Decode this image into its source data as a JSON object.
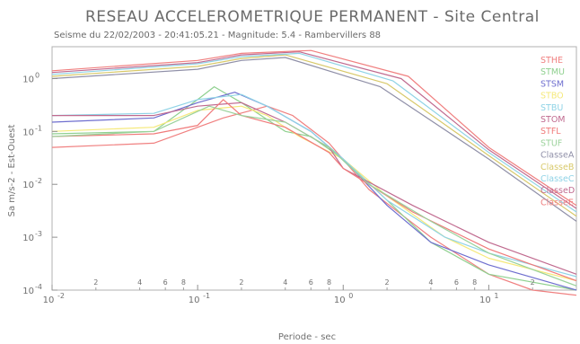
{
  "chart_data": {
    "type": "line",
    "title": "RESEAU ACCELEROMETRIQUE PERMANENT  -  Site Central",
    "subtitle": "Seisme du 22/02/2003 - 20:41:05.21 - Magnitude: 5.4 - Rambervillers 88",
    "xlabel": "Periode - sec",
    "ylabel": "Sa m/s-2 - Est-Ouest",
    "x_scale": "log",
    "y_scale": "log",
    "xlim": [
      0.01,
      40
    ],
    "ylim": [
      0.0001,
      4
    ],
    "grid": false,
    "legend_position": "right",
    "x_ticks_major": [
      {
        "v": 0.01,
        "base": "10",
        "exp": "-2"
      },
      {
        "v": 0.1,
        "base": "10",
        "exp": "-1"
      },
      {
        "v": 1,
        "base": "10",
        "exp": "0"
      },
      {
        "v": 10,
        "base": "10",
        "exp": "1"
      }
    ],
    "x_ticks_minor": [
      {
        "v": 0.02,
        "label": "2"
      },
      {
        "v": 0.04,
        "label": "4"
      },
      {
        "v": 0.06,
        "label": "6"
      },
      {
        "v": 0.08,
        "label": "8"
      },
      {
        "v": 0.2,
        "label": "2"
      },
      {
        "v": 0.4,
        "label": "4"
      },
      {
        "v": 0.6,
        "label": "6"
      },
      {
        "v": 0.8,
        "label": "8"
      },
      {
        "v": 2,
        "label": "2"
      },
      {
        "v": 4,
        "label": "4"
      },
      {
        "v": 6,
        "label": "6"
      },
      {
        "v": 8,
        "label": "8"
      },
      {
        "v": 20,
        "label": "2"
      }
    ],
    "y_ticks": [
      {
        "v": 1,
        "base": "10",
        "exp": "0"
      },
      {
        "v": 0.1,
        "base": "10",
        "exp": "-1"
      },
      {
        "v": 0.01,
        "base": "10",
        "exp": "-2"
      },
      {
        "v": 0.001,
        "base": "10",
        "exp": "-3"
      },
      {
        "v": 0.0001,
        "base": "10",
        "exp": "-4"
      }
    ],
    "series": [
      {
        "name": "STHE",
        "color": "#f08080",
        "x": [
          0.01,
          0.05,
          0.15,
          0.3,
          0.45,
          0.8,
          1.5,
          4,
          10,
          20,
          40
        ],
        "y": [
          0.05,
          0.06,
          0.18,
          0.3,
          0.2,
          0.06,
          0.008,
          0.001,
          0.0002,
          0.0001,
          8e-05
        ]
      },
      {
        "name": "STMU",
        "color": "#8fd08f",
        "x": [
          0.01,
          0.05,
          0.1,
          0.13,
          0.2,
          0.4,
          0.6,
          1,
          2,
          4,
          10,
          40
        ],
        "y": [
          0.09,
          0.1,
          0.4,
          0.7,
          0.35,
          0.1,
          0.08,
          0.03,
          0.005,
          0.0008,
          0.0002,
          0.0001
        ]
      },
      {
        "name": "STSM",
        "color": "#6f6fcf",
        "x": [
          0.01,
          0.05,
          0.1,
          0.18,
          0.3,
          0.6,
          1,
          2,
          4,
          10,
          40
        ],
        "y": [
          0.15,
          0.18,
          0.35,
          0.55,
          0.3,
          0.1,
          0.03,
          0.004,
          0.0008,
          0.0003,
          0.0001
        ]
      },
      {
        "name": "STBO",
        "color": "#f5e97a",
        "x": [
          0.01,
          0.05,
          0.1,
          0.2,
          0.3,
          0.5,
          1,
          2,
          5,
          10,
          40
        ],
        "y": [
          0.1,
          0.12,
          0.25,
          0.3,
          0.2,
          0.08,
          0.03,
          0.006,
          0.001,
          0.0004,
          0.00015
        ]
      },
      {
        "name": "STBU",
        "color": "#8fd3e6",
        "x": [
          0.01,
          0.05,
          0.1,
          0.2,
          0.3,
          0.6,
          1,
          2,
          5,
          10,
          40
        ],
        "y": [
          0.2,
          0.22,
          0.4,
          0.5,
          0.3,
          0.1,
          0.03,
          0.005,
          0.001,
          0.0005,
          0.00018
        ]
      },
      {
        "name": "STOM",
        "color": "#c06a8f",
        "x": [
          0.01,
          0.05,
          0.1,
          0.2,
          0.4,
          0.8,
          1,
          3,
          10,
          40
        ],
        "y": [
          0.2,
          0.2,
          0.3,
          0.35,
          0.15,
          0.05,
          0.02,
          0.004,
          0.0008,
          0.0002
        ]
      },
      {
        "name": "STFL",
        "color": "#f07a7a",
        "x": [
          0.01,
          0.05,
          0.1,
          0.15,
          0.2,
          0.4,
          0.8,
          1,
          3,
          10,
          40
        ],
        "y": [
          0.08,
          0.09,
          0.13,
          0.4,
          0.2,
          0.12,
          0.04,
          0.02,
          0.003,
          0.0006,
          0.00015
        ]
      },
      {
        "name": "STUF",
        "color": "#9bd29b",
        "x": [
          0.01,
          0.05,
          0.12,
          0.2,
          0.4,
          0.8,
          1.5,
          4,
          10,
          40
        ],
        "y": [
          0.08,
          0.1,
          0.3,
          0.2,
          0.15,
          0.05,
          0.01,
          0.002,
          0.0005,
          0.00012
        ]
      },
      {
        "name": "ClasseA",
        "color": "#9090a8",
        "x": [
          0.01,
          0.1,
          0.2,
          0.4,
          1.8,
          10,
          40
        ],
        "y": [
          1.0,
          1.5,
          2.2,
          2.5,
          0.7,
          0.03,
          0.002
        ]
      },
      {
        "name": "ClasseB",
        "color": "#d8c96a",
        "x": [
          0.01,
          0.1,
          0.2,
          0.4,
          2,
          10,
          40
        ],
        "y": [
          1.1,
          1.7,
          2.4,
          2.8,
          0.8,
          0.035,
          0.0025
        ]
      },
      {
        "name": "ClasseC",
        "color": "#8fd3e6",
        "x": [
          0.01,
          0.1,
          0.2,
          0.5,
          2.2,
          10,
          40
        ],
        "y": [
          1.2,
          1.9,
          2.6,
          3.0,
          0.9,
          0.04,
          0.003
        ]
      },
      {
        "name": "ClasseD",
        "color": "#c06a8f",
        "x": [
          0.01,
          0.1,
          0.2,
          0.5,
          2.5,
          10,
          40
        ],
        "y": [
          1.3,
          2.0,
          2.8,
          3.2,
          1.0,
          0.045,
          0.0035
        ]
      },
      {
        "name": "ClasseE",
        "color": "#f08080",
        "x": [
          0.01,
          0.1,
          0.2,
          0.6,
          2.8,
          10,
          40
        ],
        "y": [
          1.4,
          2.2,
          3.0,
          3.4,
          1.1,
          0.05,
          0.004
        ]
      }
    ]
  }
}
